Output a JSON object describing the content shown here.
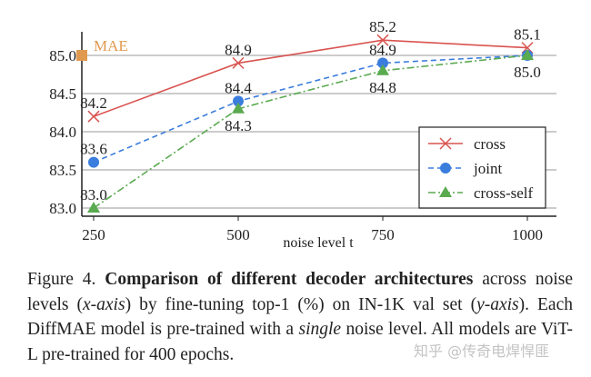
{
  "chart_data": {
    "type": "line",
    "x": [
      250,
      500,
      750,
      1000
    ],
    "xlabel": "noise level t",
    "ylabel": "",
    "ylim": [
      82.95,
      85.3
    ],
    "yticks": [
      83.0,
      83.5,
      84.0,
      84.5,
      85.0
    ],
    "xticks": [
      250,
      500,
      750,
      1000
    ],
    "grid": "horizontal",
    "legend": "lower-right",
    "series": [
      {
        "name": "cross",
        "values": [
          84.2,
          84.9,
          85.2,
          85.1
        ],
        "color": "#d9534f",
        "marker": "x",
        "dash": "solid"
      },
      {
        "name": "joint",
        "values": [
          83.6,
          84.4,
          84.9,
          85.0
        ],
        "color": "#3b7ddd",
        "marker": "circle",
        "dash": "dashed"
      },
      {
        "name": "cross-self",
        "values": [
          83.0,
          84.3,
          84.8,
          85.0
        ],
        "color": "#5aaa50",
        "marker": "triangle",
        "dash": "dashdot"
      }
    ],
    "baseline": {
      "name": "MAE",
      "value": 85.0,
      "color": "#e09a50"
    }
  },
  "caption": {
    "prefix": "Figure 4. ",
    "bold": "Comparison of different decoder architectures",
    "t1": " across noise levels (",
    "i1": "x-axis",
    "t2": ") by fine-tuning top-1 (%) on IN-1K val set (",
    "i2": "y-axis",
    "t3": "). Each DiffMAE model is pre-trained with a ",
    "i3": "single",
    "t4": " noise level. All models are ViT-L pre-trained for 400 epochs."
  },
  "watermark": "知乎 @传奇电焊悍匪"
}
